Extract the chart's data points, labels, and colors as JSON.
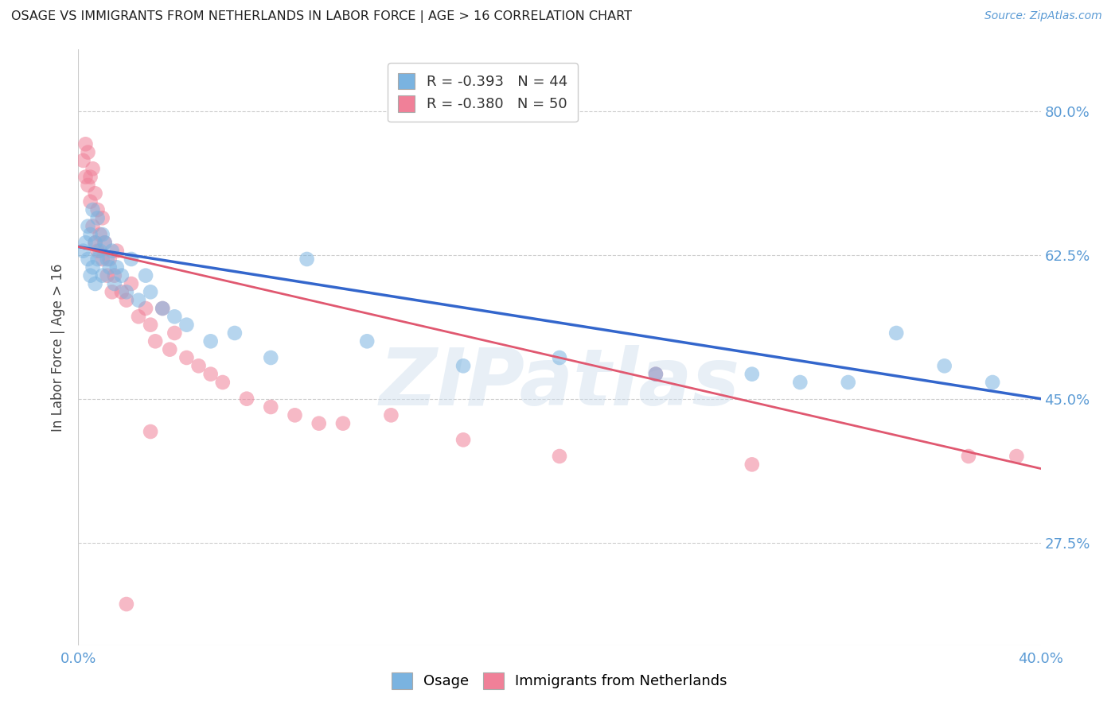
{
  "title": "OSAGE VS IMMIGRANTS FROM NETHERLANDS IN LABOR FORCE | AGE > 16 CORRELATION CHART",
  "source_text": "Source: ZipAtlas.com",
  "ylabel": "In Labor Force | Age > 16",
  "x_min": 0.0,
  "x_max": 0.4,
  "y_min": 0.15,
  "y_max": 0.875,
  "y_ticks": [
    0.275,
    0.45,
    0.625,
    0.8
  ],
  "y_tick_labels": [
    "27.5%",
    "45.0%",
    "62.5%",
    "80.0%"
  ],
  "x_tick_positions": [
    0.0,
    0.08,
    0.16,
    0.24,
    0.32,
    0.4
  ],
  "x_tick_labels": [
    "0.0%",
    "",
    "",
    "",
    "",
    "40.0%"
  ],
  "series1_label": "Osage",
  "series2_label": "Immigrants from Netherlands",
  "series1_color": "#7ab3e0",
  "series2_color": "#f08098",
  "series1_line_color": "#3366cc",
  "series2_line_color": "#e05870",
  "watermark": "ZIPatlas",
  "background_color": "#ffffff",
  "grid_color": "#cccccc",
  "axis_label_color": "#5b9bd5",
  "title_color": "#222222",
  "legend1_text": "R = -0.393   N = 44",
  "legend2_text": "R = -0.380   N = 50",
  "osage_line_x0": 0.0,
  "osage_line_y0": 0.635,
  "osage_line_x1": 0.4,
  "osage_line_y1": 0.45,
  "neth_line_x0": 0.0,
  "neth_line_y0": 0.635,
  "neth_line_x1": 0.4,
  "neth_line_y1": 0.365,
  "osage_x": [
    0.002,
    0.003,
    0.004,
    0.004,
    0.005,
    0.005,
    0.006,
    0.006,
    0.007,
    0.007,
    0.008,
    0.008,
    0.009,
    0.01,
    0.01,
    0.011,
    0.012,
    0.013,
    0.014,
    0.015,
    0.016,
    0.018,
    0.02,
    0.022,
    0.025,
    0.028,
    0.03,
    0.035,
    0.04,
    0.045,
    0.055,
    0.065,
    0.08,
    0.095,
    0.12,
    0.16,
    0.2,
    0.24,
    0.28,
    0.3,
    0.32,
    0.34,
    0.36,
    0.38
  ],
  "osage_y": [
    0.63,
    0.64,
    0.62,
    0.66,
    0.65,
    0.6,
    0.68,
    0.61,
    0.64,
    0.59,
    0.67,
    0.62,
    0.63,
    0.65,
    0.6,
    0.64,
    0.62,
    0.61,
    0.63,
    0.59,
    0.61,
    0.6,
    0.58,
    0.62,
    0.57,
    0.6,
    0.58,
    0.56,
    0.55,
    0.54,
    0.52,
    0.53,
    0.5,
    0.62,
    0.52,
    0.49,
    0.5,
    0.48,
    0.48,
    0.47,
    0.47,
    0.53,
    0.49,
    0.47
  ],
  "netherlands_x": [
    0.002,
    0.003,
    0.003,
    0.004,
    0.004,
    0.005,
    0.005,
    0.006,
    0.006,
    0.007,
    0.007,
    0.008,
    0.008,
    0.009,
    0.01,
    0.01,
    0.011,
    0.012,
    0.013,
    0.014,
    0.015,
    0.016,
    0.018,
    0.02,
    0.022,
    0.025,
    0.028,
    0.03,
    0.032,
    0.035,
    0.038,
    0.04,
    0.045,
    0.05,
    0.055,
    0.06,
    0.07,
    0.08,
    0.09,
    0.1,
    0.11,
    0.13,
    0.16,
    0.2,
    0.24,
    0.28,
    0.02,
    0.03,
    0.37,
    0.39
  ],
  "netherlands_y": [
    0.74,
    0.72,
    0.76,
    0.71,
    0.75,
    0.72,
    0.69,
    0.73,
    0.66,
    0.7,
    0.64,
    0.68,
    0.63,
    0.65,
    0.67,
    0.62,
    0.64,
    0.6,
    0.62,
    0.58,
    0.6,
    0.63,
    0.58,
    0.57,
    0.59,
    0.55,
    0.56,
    0.54,
    0.52,
    0.56,
    0.51,
    0.53,
    0.5,
    0.49,
    0.48,
    0.47,
    0.45,
    0.44,
    0.43,
    0.42,
    0.42,
    0.43,
    0.4,
    0.38,
    0.48,
    0.37,
    0.2,
    0.41,
    0.38,
    0.38
  ]
}
